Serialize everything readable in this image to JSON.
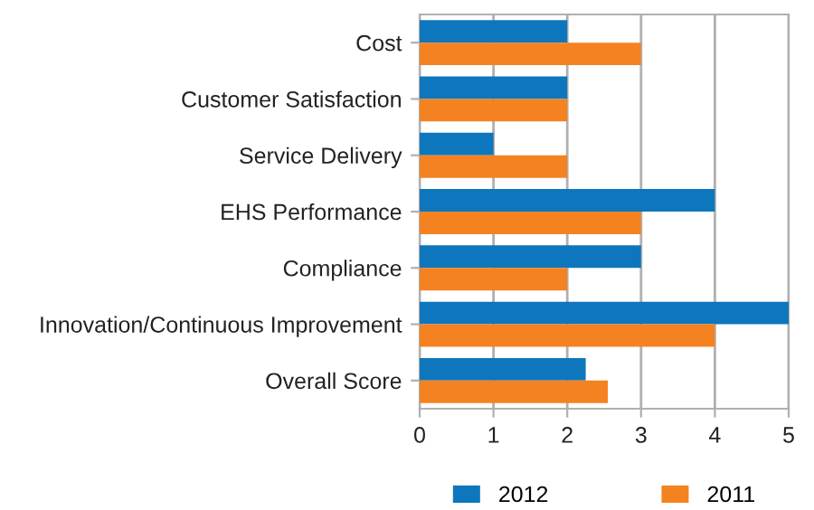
{
  "chart_data": {
    "type": "bar",
    "orientation": "horizontal",
    "categories": [
      "Cost",
      "Customer Satisfaction",
      "Service Delivery",
      "EHS Performance",
      "Compliance",
      "Innovation/Continuous Improvement",
      "Overall Score"
    ],
    "series": [
      {
        "name": "2012",
        "color": "#0e76bc",
        "values": [
          2,
          2,
          1,
          4,
          3,
          5,
          2.25
        ]
      },
      {
        "name": "2011",
        "color": "#f58220",
        "values": [
          3,
          2,
          2,
          3,
          2,
          4,
          2.55
        ]
      }
    ],
    "xlim": [
      0,
      5
    ],
    "xticks": [
      0,
      1,
      2,
      3,
      4,
      5
    ],
    "grid": "x",
    "legend": "bottom"
  }
}
